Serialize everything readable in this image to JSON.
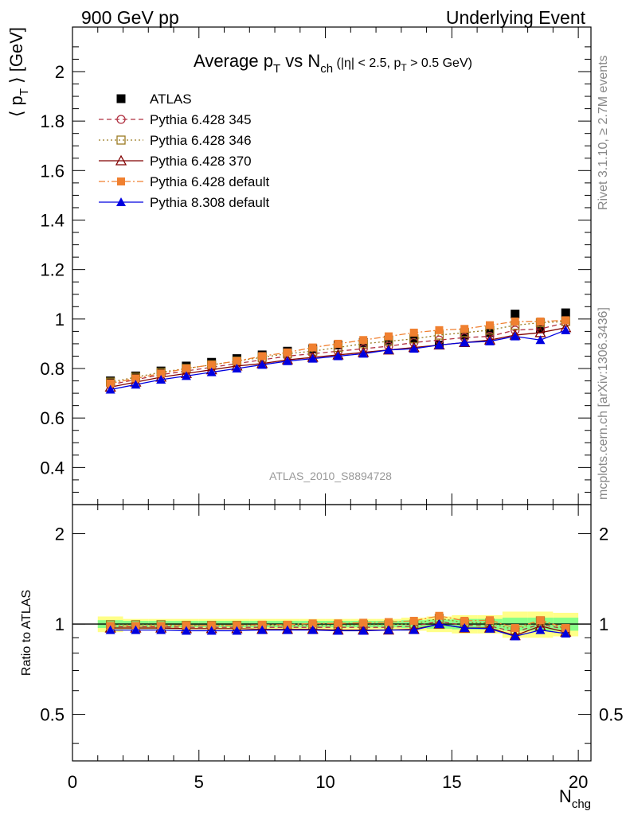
{
  "header": {
    "left": "900 GeV pp",
    "right": "Underlying Event"
  },
  "side_text": {
    "rivet": "Rivet 3.1.10, ≥ 2.7M events",
    "mcplots": "mcplots.cern.ch [arXiv:1306.3436]"
  },
  "watermark": "ATLAS_2010_S8894728",
  "chart_data": {
    "type": "scatter",
    "title": "Average p_T vs N_ch (|η| < 2.5, p_T > 0.5 GeV)",
    "ylabel": "⟨ p_T ⟩ [GeV]",
    "xlabel": "N_chg",
    "ratio_ylabel": "Ratio to ATLAS",
    "xlim": [
      0,
      20.5
    ],
    "ylim": [
      0.25,
      2.18
    ],
    "ratio_ylim": [
      0.35,
      2.5
    ],
    "ratio_log_scale": true,
    "x_ticks": [
      "0",
      "5",
      "10",
      "15",
      "20"
    ],
    "y_ticks": [
      "0.4",
      "0.6",
      "0.8",
      "1",
      "1.2",
      "1.4",
      "1.6",
      "1.8",
      "2"
    ],
    "ratio_ticks": [
      "0.5",
      "1",
      "2"
    ],
    "x": [
      1.5,
      2.5,
      3.5,
      4.5,
      5.5,
      6.5,
      7.5,
      8.5,
      9.5,
      10.5,
      11.5,
      12.5,
      13.5,
      14.5,
      15.5,
      16.5,
      17.5,
      18.5,
      19.5
    ],
    "legend_position": "top-left",
    "series": [
      {
        "name": "ATLAS",
        "color": "#000000",
        "marker": "square-filled",
        "line": "none",
        "values": [
          0.75,
          0.77,
          0.79,
          0.81,
          0.825,
          0.84,
          0.855,
          0.87,
          0.88,
          0.895,
          0.905,
          0.915,
          0.92,
          0.895,
          0.935,
          0.945,
          1.02,
          0.96,
          1.025
        ],
        "band_green": [
          0.03,
          0.025,
          0.025,
          0.025,
          0.025,
          0.025,
          0.025,
          0.025,
          0.025,
          0.025,
          0.025,
          0.025,
          0.03,
          0.035,
          0.04,
          0.04,
          0.05,
          0.05,
          0.05
        ],
        "band_yellow": [
          0.06,
          0.04,
          0.04,
          0.04,
          0.04,
          0.04,
          0.04,
          0.04,
          0.04,
          0.04,
          0.04,
          0.04,
          0.05,
          0.06,
          0.07,
          0.07,
          0.1,
          0.1,
          0.09
        ]
      },
      {
        "name": "Pythia 6.428 345",
        "color": "#b03040",
        "marker": "circle-open",
        "line": "dashed",
        "values": [
          0.735,
          0.755,
          0.775,
          0.79,
          0.805,
          0.82,
          0.835,
          0.85,
          0.86,
          0.87,
          0.88,
          0.89,
          0.905,
          0.915,
          0.925,
          0.93,
          0.955,
          0.96,
          0.985
        ]
      },
      {
        "name": "Pythia 6.428 346",
        "color": "#9a7a20",
        "marker": "square-open",
        "line": "dotted",
        "values": [
          0.745,
          0.765,
          0.785,
          0.8,
          0.815,
          0.83,
          0.845,
          0.86,
          0.87,
          0.885,
          0.9,
          0.91,
          0.92,
          0.935,
          0.945,
          0.955,
          0.975,
          0.985,
          0.99
        ]
      },
      {
        "name": "Pythia 6.428 370",
        "color": "#800000",
        "marker": "triangle-open",
        "line": "solid",
        "values": [
          0.725,
          0.745,
          0.765,
          0.78,
          0.795,
          0.81,
          0.82,
          0.835,
          0.845,
          0.855,
          0.865,
          0.875,
          0.885,
          0.895,
          0.905,
          0.915,
          0.935,
          0.945,
          0.965
        ]
      },
      {
        "name": "Pythia 6.428 default",
        "color": "#f08030",
        "marker": "square-filled",
        "line": "dashdot",
        "values": [
          0.74,
          0.76,
          0.78,
          0.8,
          0.815,
          0.83,
          0.85,
          0.865,
          0.885,
          0.9,
          0.915,
          0.93,
          0.945,
          0.955,
          0.96,
          0.975,
          0.99,
          0.99,
          0.995
        ]
      },
      {
        "name": "Pythia 8.308 default",
        "color": "#0000e0",
        "marker": "triangle-filled",
        "line": "solid",
        "values": [
          0.715,
          0.735,
          0.755,
          0.77,
          0.785,
          0.8,
          0.815,
          0.83,
          0.84,
          0.85,
          0.86,
          0.875,
          0.88,
          0.895,
          0.905,
          0.91,
          0.93,
          0.915,
          0.955
        ]
      }
    ],
    "ratio_series": [
      {
        "name": "Pythia 6.428 345",
        "values": [
          0.98,
          0.98,
          0.98,
          0.975,
          0.975,
          0.975,
          0.975,
          0.975,
          0.975,
          0.975,
          0.975,
          0.975,
          0.985,
          1.02,
          0.99,
          0.985,
          0.94,
          1.0,
          0.96
        ]
      },
      {
        "name": "Pythia 6.428 346",
        "values": [
          0.995,
          0.995,
          0.995,
          0.99,
          0.99,
          0.99,
          0.99,
          0.99,
          0.99,
          0.99,
          0.995,
          0.995,
          1.0,
          1.045,
          1.01,
          1.01,
          0.955,
          1.025,
          0.965
        ]
      },
      {
        "name": "Pythia 6.428 370",
        "values": [
          0.97,
          0.97,
          0.97,
          0.965,
          0.965,
          0.965,
          0.96,
          0.96,
          0.96,
          0.955,
          0.955,
          0.955,
          0.96,
          1.0,
          0.97,
          0.97,
          0.915,
          0.985,
          0.94
        ]
      },
      {
        "name": "Pythia 6.428 default",
        "values": [
          0.985,
          0.985,
          0.985,
          0.99,
          0.99,
          0.99,
          0.995,
          0.995,
          1.005,
          1.005,
          1.01,
          1.015,
          1.025,
          1.065,
          1.025,
          1.03,
          0.97,
          1.03,
          0.97
        ]
      },
      {
        "name": "Pythia 8.308 default",
        "values": [
          0.955,
          0.955,
          0.955,
          0.95,
          0.95,
          0.95,
          0.955,
          0.955,
          0.955,
          0.95,
          0.95,
          0.955,
          0.955,
          1.0,
          0.97,
          0.965,
          0.91,
          0.955,
          0.93
        ]
      }
    ]
  }
}
